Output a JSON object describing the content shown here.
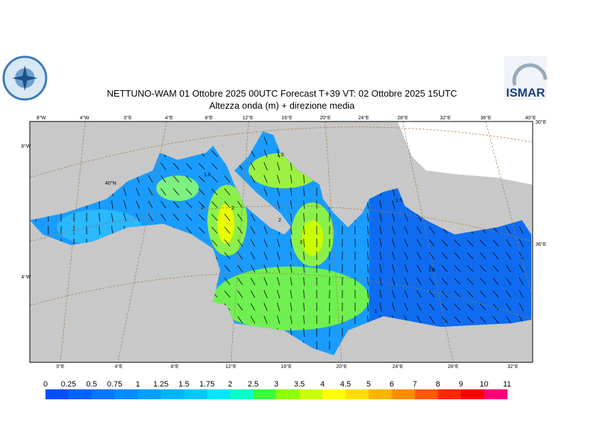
{
  "header": {
    "title": "NETTUNO-WAM  01  Ottobre  2025 00UTC Forecast T+39 VT: 02  Ottobre  2025 15UTC",
    "subtitle": "Altezza onda (m) + direzione media",
    "logo_right": "ISMAR"
  },
  "map": {
    "top_labels": [
      "8°W",
      "4°W",
      "0°E",
      "4°E",
      "8°E",
      "12°E",
      "16°E",
      "20°E",
      "24°E",
      "28°E",
      "32°E",
      "36°E",
      "40°E"
    ],
    "bottom_labels": [
      "0°E",
      "4°E",
      "8°E",
      "12°E",
      "16°E",
      "20°E",
      "24°E",
      "28°E",
      "32°E"
    ],
    "left_labels": [
      "8°W",
      "4°W"
    ],
    "right_labels": [
      "30°E",
      "36°E"
    ],
    "inner_label": "40°N",
    "contour_labels": [
      "1.5",
      "1.5",
      "2",
      "2",
      "3",
      "2",
      "1.5",
      "1.5",
      "1"
    ]
  },
  "legend": {
    "labels": [
      "0",
      "0.25",
      "0.5",
      "0.75",
      "1",
      "1.25",
      "1.5",
      "1.75",
      "2",
      "2.5",
      "3",
      "3.5",
      "4",
      "4.5",
      "5",
      "6",
      "7",
      "8",
      "9",
      "10",
      "11"
    ],
    "colors": [
      "#0050ff",
      "#0064ff",
      "#0078ff",
      "#008cff",
      "#00a0ff",
      "#00b4ff",
      "#00c8ff",
      "#00e6ff",
      "#00ffc8",
      "#3cff3c",
      "#8cff00",
      "#c8ff00",
      "#ffff00",
      "#ffdc00",
      "#ffb400",
      "#ff8c00",
      "#ff5a00",
      "#ff2800",
      "#ff0000",
      "#ff0078",
      "#ff00c8"
    ]
  }
}
